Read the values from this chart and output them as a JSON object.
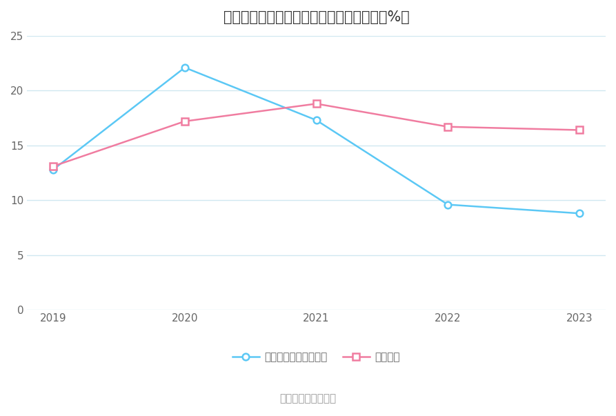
{
  "title": "震裕科技近年来部分主要产品毛利率情况（%）",
  "source_text": "数据来源：恒生聚源",
  "years": [
    2019,
    2020,
    2021,
    2022,
    2023
  ],
  "series": [
    {
      "name": "动力锂电池精密结构件",
      "values": [
        12.8,
        22.1,
        17.3,
        9.6,
        8.8
      ],
      "color": "#5bc8f5",
      "marker": "o"
    },
    {
      "name": "电机铁芯",
      "values": [
        13.1,
        17.2,
        18.8,
        16.7,
        16.4
      ],
      "color": "#f07ca0",
      "marker": "s"
    }
  ],
  "ylim": [
    0,
    25
  ],
  "yticks": [
    0,
    5,
    10,
    15,
    20,
    25
  ],
  "bg_color": "#ffffff",
  "grid_color": "#d0e8f0",
  "title_fontsize": 15,
  "legend_fontsize": 11,
  "source_fontsize": 11,
  "tick_fontsize": 11
}
